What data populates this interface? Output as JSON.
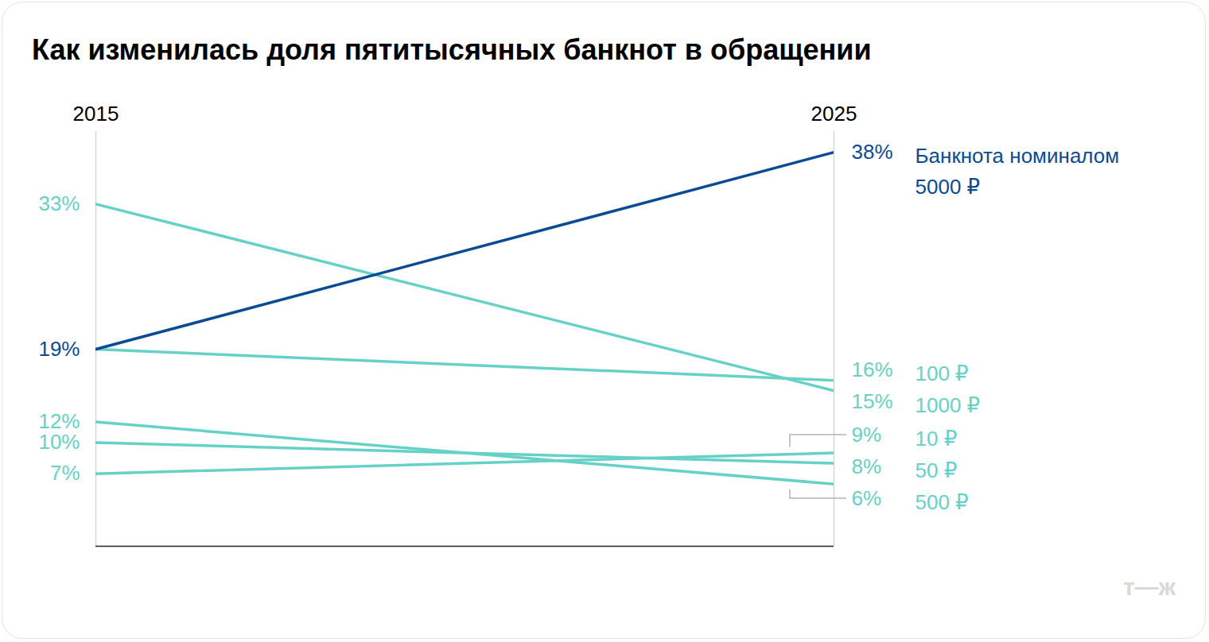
{
  "chart_data": {
    "type": "line",
    "title": "Как изменилась доля пятитысячных банкнот в обращении",
    "x": [
      2015,
      2025
    ],
    "xlim": [
      2015,
      2025
    ],
    "xticks": [
      2015,
      2025
    ],
    "ylim": [
      0,
      40
    ],
    "grid": true,
    "tick_labels": "x",
    "data_labels": true,
    "series": [
      {
        "name": "Банкнота номиналом\n5000 ₽",
        "color": "#0b4b93",
        "values": [
          19,
          38
        ],
        "value_labels": [
          "19%",
          "38%"
        ]
      },
      {
        "name": "100 ₽",
        "color": "#66d1c7",
        "values": [
          19,
          16
        ],
        "value_labels": [
          null,
          "16%"
        ]
      },
      {
        "name": "1000 ₽",
        "color": "#66d1c7",
        "values": [
          33,
          15
        ],
        "value_labels": [
          "33%",
          "15%"
        ]
      },
      {
        "name": "10 ₽",
        "color": "#66d1c7",
        "values": [
          7,
          9
        ],
        "value_labels": [
          "7%",
          "9%"
        ]
      },
      {
        "name": "50 ₽",
        "color": "#66d1c7",
        "values": [
          10,
          8
        ],
        "value_labels": [
          "10%",
          "8%"
        ]
      },
      {
        "name": "500 ₽",
        "color": "#66d1c7",
        "values": [
          12,
          6
        ],
        "value_labels": [
          "12%",
          "6%"
        ]
      }
    ],
    "watermark": "т—ж"
  }
}
